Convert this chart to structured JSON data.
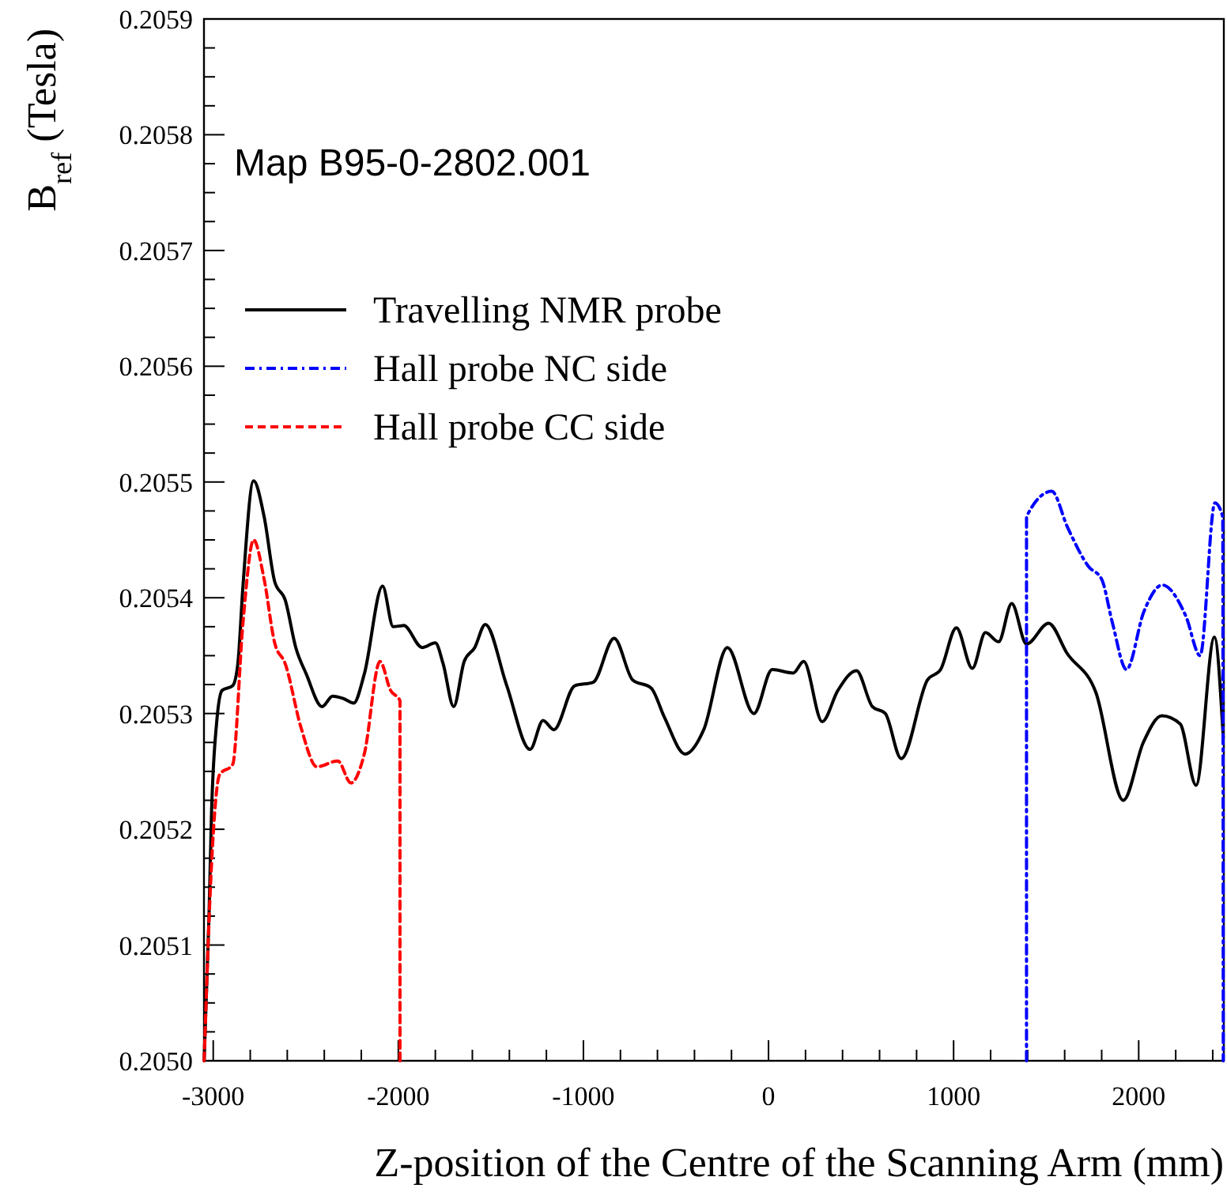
{
  "chart_data": {
    "type": "line",
    "ylabel": "B$_{ref}$ (Tesla)",
    "xlabel": "Z-position of the Centre of the Scanning Arm (mm)",
    "annotations": [
      "Map B95-0-2802.001"
    ],
    "legend": "top left",
    "grid": false,
    "xlim": [
      -3050,
      2460
    ],
    "ylim": [
      0.205,
      0.2059
    ],
    "xticks": [
      {
        "value": -3000,
        "label": "-3000"
      },
      {
        "value": -2800,
        "label": null
      },
      {
        "value": -2600,
        "label": null
      },
      {
        "value": -2400,
        "label": null
      },
      {
        "value": -2200,
        "label": null
      },
      {
        "value": -2000,
        "label": "-2000"
      },
      {
        "value": -1800,
        "label": null
      },
      {
        "value": -1600,
        "label": null
      },
      {
        "value": -1400,
        "label": null
      },
      {
        "value": -1200,
        "label": null
      },
      {
        "value": -1000,
        "label": "-1000"
      },
      {
        "value": -800,
        "label": null
      },
      {
        "value": -600,
        "label": null
      },
      {
        "value": -400,
        "label": null
      },
      {
        "value": -200,
        "label": null
      },
      0,
      {
        "value": 200,
        "label": null
      },
      {
        "value": 400,
        "label": null
      },
      {
        "value": 600,
        "label": null
      },
      {
        "value": 800,
        "label": null
      },
      1000,
      {
        "value": 1200,
        "label": null
      },
      {
        "value": 1400,
        "label": null
      },
      {
        "value": 1600,
        "label": null
      },
      {
        "value": 1800,
        "label": null
      },
      2000,
      {
        "value": 2200,
        "label": null
      },
      {
        "value": 2400,
        "label": null
      }
    ],
    "yticks": [
      {
        "value": 0.205,
        "label": "0.2050"
      },
      {
        "value": 0.205025,
        "label": null
      },
      {
        "value": 0.20505,
        "label": null
      },
      {
        "value": 0.205075,
        "label": null
      },
      {
        "value": 0.2051,
        "label": "0.2051"
      },
      {
        "value": 0.205125,
        "label": null
      },
      {
        "value": 0.20515,
        "label": null
      },
      {
        "value": 0.205175,
        "label": null
      },
      {
        "value": 0.2052,
        "label": "0.2052"
      },
      {
        "value": 0.205225,
        "label": null
      },
      {
        "value": 0.20525,
        "label": null
      },
      {
        "value": 0.205275,
        "label": null
      },
      {
        "value": 0.2053,
        "label": "0.2053"
      },
      {
        "value": 0.205325,
        "label": null
      },
      {
        "value": 0.20535,
        "label": null
      },
      {
        "value": 0.205375,
        "label": null
      },
      {
        "value": 0.2054,
        "label": "0.2054"
      },
      {
        "value": 0.205425,
        "label": null
      },
      {
        "value": 0.20545,
        "label": null
      },
      {
        "value": 0.205475,
        "label": null
      },
      {
        "value": 0.2055,
        "label": "0.2055"
      },
      {
        "value": 0.205525,
        "label": null
      },
      {
        "value": 0.20555,
        "label": null
      },
      {
        "value": 0.205575,
        "label": null
      },
      {
        "value": 0.2056,
        "label": "0.2056"
      },
      {
        "value": 0.205625,
        "label": null
      },
      {
        "value": 0.20565,
        "label": null
      },
      {
        "value": 0.205675,
        "label": null
      },
      {
        "value": 0.2057,
        "label": "0.2057"
      },
      {
        "value": 0.205725,
        "label": null
      },
      {
        "value": 0.20575,
        "label": null
      },
      {
        "value": 0.205775,
        "label": null
      },
      {
        "value": 0.2058,
        "label": "0.2058"
      },
      {
        "value": 0.205825,
        "label": null
      },
      {
        "value": 0.20585,
        "label": null
      },
      {
        "value": 0.205875,
        "label": null
      },
      {
        "value": 0.2059,
        "label": "0.2059"
      }
    ],
    "series": [
      {
        "name": "Travelling NMR probe",
        "color": "#000000",
        "line_style": "solid",
        "x": [
          -3049,
          -3023,
          -3009,
          -2981,
          -2952,
          -2895,
          -2867,
          -2839,
          -2782,
          -2725,
          -2668,
          -2611,
          -2554,
          -2497,
          -2412,
          -2355,
          -2298,
          -2241,
          -2184,
          -2085,
          -2028,
          -1971,
          -1871,
          -1800,
          -1758,
          -1701,
          -1644,
          -1587,
          -1530,
          -1416,
          -1288,
          -1218,
          -1160,
          -1047,
          -947,
          -834,
          -734,
          -634,
          -563,
          -450,
          -350,
          -222,
          -79,
          20,
          134,
          190,
          290,
          375,
          475,
          561,
          631,
          717,
          859,
          930,
          1015,
          1101,
          1172,
          1243,
          1314,
          1394,
          1513,
          1613,
          1769,
          1917,
          2025,
          2125,
          2224,
          2310,
          2409,
          2457
        ],
        "values": [
          0.205,
          0.205124,
          0.205215,
          0.205293,
          0.20532,
          0.205324,
          0.205343,
          0.205411,
          0.205501,
          0.20547,
          0.205414,
          0.205398,
          0.205357,
          0.205334,
          0.205306,
          0.205315,
          0.205313,
          0.205309,
          0.205334,
          0.20541,
          0.205375,
          0.205376,
          0.205357,
          0.205361,
          0.205343,
          0.205306,
          0.205345,
          0.205357,
          0.205377,
          0.205325,
          0.205269,
          0.205294,
          0.205286,
          0.205324,
          0.205327,
          0.205365,
          0.205329,
          0.205322,
          0.205297,
          0.205265,
          0.205286,
          0.205357,
          0.2053,
          0.205338,
          0.205335,
          0.205345,
          0.205293,
          0.20532,
          0.205337,
          0.205306,
          0.2053,
          0.205261,
          0.205329,
          0.205338,
          0.205374,
          0.205339,
          0.20537,
          0.205362,
          0.205395,
          0.20536,
          0.205378,
          0.205352,
          0.205318,
          0.205225,
          0.205275,
          0.205298,
          0.205291,
          0.205238,
          0.205366,
          0.205279
        ]
      },
      {
        "name": "Hall probe NC side",
        "color": "#0000ff",
        "line_style": "dotted",
        "x": [
          1394,
          1394,
          1530,
          1615,
          1729,
          1800,
          1857,
          1934,
          2028,
          2127,
          2255,
          2332,
          2412,
          2454,
          2457
        ],
        "values": [
          0.205,
          0.20547,
          0.205492,
          0.205461,
          0.205427,
          0.205416,
          0.205379,
          0.205338,
          0.205388,
          0.205411,
          0.205384,
          0.20535,
          0.205482,
          0.20547,
          0.205
        ]
      },
      {
        "name": "Hall probe CC side",
        "color": "#ff0000",
        "line_style": "dashed",
        "x": [
          -3049,
          -3009,
          -2966,
          -2895,
          -2839,
          -2782,
          -2725,
          -2668,
          -2611,
          -2526,
          -2440,
          -2327,
          -2256,
          -2184,
          -2099,
          -2042,
          -1991,
          -1991
        ],
        "values": [
          0.205,
          0.20517,
          0.205247,
          0.205256,
          0.205379,
          0.20545,
          0.205416,
          0.205361,
          0.205343,
          0.205288,
          0.205254,
          0.205259,
          0.20524,
          0.205265,
          0.205345,
          0.20532,
          0.205311,
          0.205
        ]
      }
    ]
  }
}
